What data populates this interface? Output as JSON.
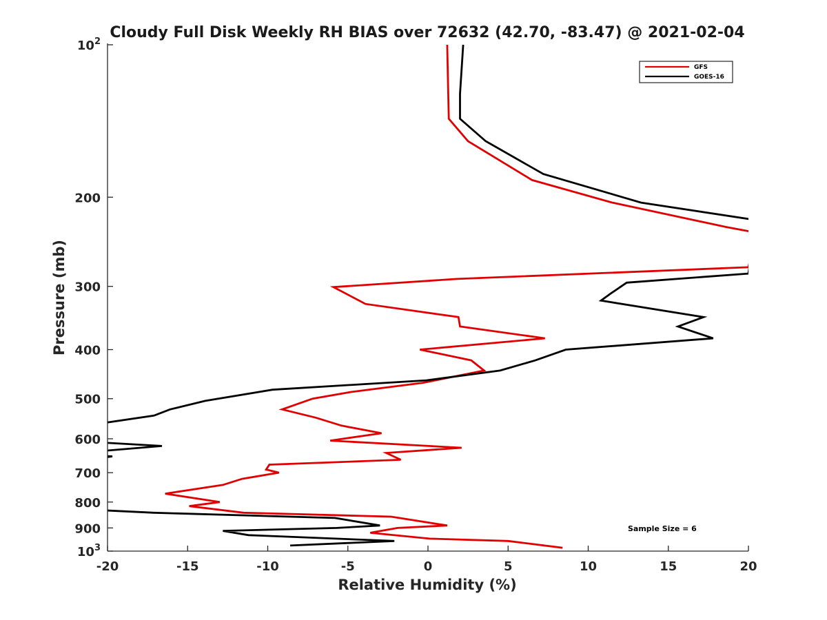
{
  "chart_data": {
    "type": "line",
    "title": "Cloudy Full Disk Weekly RH BIAS over 72632 (42.70, -83.47) @ 2021-02-04",
    "xlabel": "Relative Humidity (%)",
    "ylabel": "Pressure (mb)",
    "xlim": [
      -20,
      20
    ],
    "ylim": [
      100,
      1000
    ],
    "y_scale": "log",
    "y_reversed": true,
    "grid": false,
    "legend_position": "top-right",
    "x_ticks": [
      "-20",
      "-15",
      "-10",
      "-5",
      "0",
      "5",
      "10",
      "15",
      "20"
    ],
    "y_ticks": [
      {
        "value": 100,
        "base": "10",
        "exp": "2",
        "label": ""
      },
      {
        "value": 200,
        "base": "",
        "exp": "",
        "label": "200"
      },
      {
        "value": 300,
        "base": "",
        "exp": "",
        "label": "300"
      },
      {
        "value": 400,
        "base": "",
        "exp": "",
        "label": "400"
      },
      {
        "value": 500,
        "base": "",
        "exp": "",
        "label": "500"
      },
      {
        "value": 600,
        "base": "",
        "exp": "",
        "label": "600"
      },
      {
        "value": 700,
        "base": "",
        "exp": "",
        "label": "700"
      },
      {
        "value": 800,
        "base": "",
        "exp": "",
        "label": "800"
      },
      {
        "value": 900,
        "base": "",
        "exp": "",
        "label": "900"
      },
      {
        "value": 1000,
        "base": "10",
        "exp": "3",
        "label": ""
      }
    ],
    "annotation": "Sample Size = 6",
    "series": [
      {
        "name": "GFS",
        "color": "#e00000",
        "points": [
          [
            1.2,
            100
          ],
          [
            1.3,
            140
          ],
          [
            2.5,
            155
          ],
          [
            6.5,
            185
          ],
          [
            11.5,
            205
          ],
          [
            18.6,
            229
          ],
          [
            20.5,
            235
          ],
          [
            20,
            275
          ],
          [
            1.8,
            290
          ],
          [
            -5.9,
            301
          ],
          [
            -3.9,
            325
          ],
          [
            1.9,
            345
          ],
          [
            2.0,
            360
          ],
          [
            7.3,
            380
          ],
          [
            -0.5,
            400
          ],
          [
            2.7,
            420
          ],
          [
            3.5,
            440
          ],
          [
            -0.3,
            465
          ],
          [
            -4.8,
            485
          ],
          [
            -7.2,
            500
          ],
          [
            -9.1,
            525
          ],
          [
            -7.0,
            545
          ],
          [
            -5.4,
            565
          ],
          [
            -2.9,
            585
          ],
          [
            -6.1,
            605
          ],
          [
            2.1,
            625
          ],
          [
            -2.6,
            640
          ],
          [
            -1.7,
            660
          ],
          [
            -9.9,
            675
          ],
          [
            -10.1,
            690
          ],
          [
            -9.3,
            700
          ],
          [
            -11.6,
            720
          ],
          [
            -12.8,
            740
          ],
          [
            -16.4,
            770
          ],
          [
            -13.0,
            800
          ],
          [
            -14.9,
            815
          ],
          [
            -11.5,
            840
          ],
          [
            -2.3,
            855
          ],
          [
            1.2,
            890
          ],
          [
            -1.9,
            900
          ],
          [
            -3.6,
            920
          ],
          [
            0.1,
            945
          ],
          [
            5.0,
            955
          ],
          [
            8.4,
            985
          ]
        ]
      },
      {
        "name": "GOES-16",
        "color": "#000000",
        "points": [
          [
            2.2,
            100
          ],
          [
            2.0,
            125
          ],
          [
            2.0,
            140
          ],
          [
            3.6,
            155
          ],
          [
            7.2,
            180
          ],
          [
            13.3,
            205
          ],
          [
            20.5,
            222
          ],
          [
            20,
            283
          ],
          [
            12.4,
            295
          ],
          [
            11.4,
            310
          ],
          [
            10.8,
            320
          ],
          [
            17.2,
            345
          ],
          [
            15.6,
            360
          ],
          [
            17.8,
            380
          ],
          [
            8.6,
            400
          ],
          [
            6.7,
            420
          ],
          [
            4.5,
            440
          ],
          [
            -0.1,
            460
          ],
          [
            -9.7,
            480
          ],
          [
            -13.9,
            505
          ],
          [
            -16.1,
            525
          ],
          [
            -17.1,
            540
          ],
          [
            -20.5,
            560
          ],
          [
            -20.5,
            610
          ],
          [
            -16.6,
            620
          ],
          [
            -20.5,
            635
          ],
          [
            -20.5,
            648
          ],
          [
            -19.7,
            650
          ],
          [
            -20.5,
            655
          ],
          [
            -20.5,
            830
          ],
          [
            -17.1,
            840
          ],
          [
            -5.8,
            860
          ],
          [
            -3.0,
            890
          ],
          [
            -5.7,
            900
          ],
          [
            -12.8,
            912
          ],
          [
            -11.2,
            930
          ],
          [
            -2.1,
            955
          ],
          [
            -8.6,
            975
          ]
        ]
      }
    ]
  }
}
